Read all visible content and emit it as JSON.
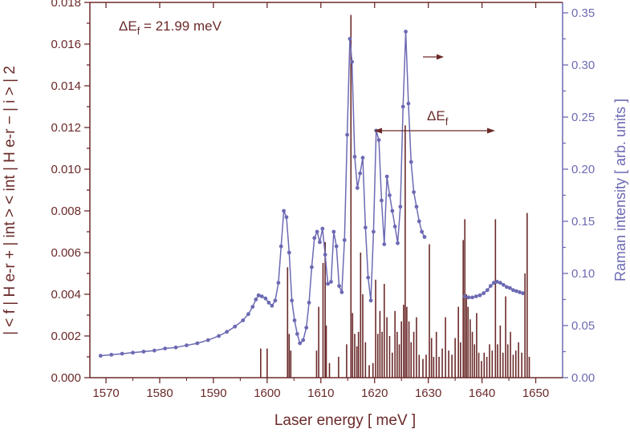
{
  "chart_data": {
    "type": "bar+line",
    "annotation_delta": "ΔE",
    "annotation_delta_sub": "f",
    "annotation_value": " = 21.99 meV",
    "arrow_label": "ΔE",
    "arrow_label_sub": "f",
    "xlabel": "Laser energy [ meV ]",
    "ylabel_left": "| < f | H e-r + | int > < int | H e-r − | i > | 2",
    "ylabel_right": "Raman intensity [ arb. units ]",
    "xlim": [
      1567,
      1655
    ],
    "ylim_left": [
      0,
      0.018
    ],
    "ylim_right": [
      0,
      0.36
    ],
    "x_ticks": [
      "1570",
      "1580",
      "1590",
      "1600",
      "1610",
      "1620",
      "1630",
      "1640",
      "1650"
    ],
    "y_ticks_left": [
      "0.000",
      "0.002",
      "0.004",
      "0.006",
      "0.008",
      "0.010",
      "0.012",
      "0.014",
      "0.016",
      "0.018"
    ],
    "y_ticks_right": [
      "0.00",
      "0.05",
      "0.10",
      "0.15",
      "0.20",
      "0.25",
      "0.30",
      "0.35"
    ],
    "colors": {
      "bars": "#6b2a2a",
      "line": "#6c6ab3",
      "text_left": "#6b2a2a",
      "text_right": "#6c6ab3"
    },
    "bars": [
      [
        1598.8,
        0.0014
      ],
      [
        1600.0,
        0.0014
      ],
      [
        1603.8,
        0.0053
      ],
      [
        1604.1,
        0.0021
      ],
      [
        1604.4,
        0.0013
      ],
      [
        1609.2,
        0.0013
      ],
      [
        1609.6,
        0.0034
      ],
      [
        1610.4,
        0.0055
      ],
      [
        1610.8,
        0.0065
      ],
      [
        1611.0,
        0.0025
      ],
      [
        1611.6,
        0.0007
      ],
      [
        1613.3,
        0.001
      ],
      [
        1614.8,
        0.0016
      ],
      [
        1615.6,
        0.0174
      ],
      [
        1615.9,
        0.0031
      ],
      [
        1616.3,
        0.0021
      ],
      [
        1616.7,
        0.0015
      ],
      [
        1617.0,
        0.0022
      ],
      [
        1617.4,
        0.006
      ],
      [
        1617.8,
        0.004
      ],
      [
        1618.3,
        0.0017
      ],
      [
        1619.0,
        0.0006
      ],
      [
        1619.7,
        0.0007
      ],
      [
        1620.2,
        0.0047
      ],
      [
        1620.6,
        0.0021
      ],
      [
        1621.0,
        0.0032
      ],
      [
        1621.4,
        0.0022
      ],
      [
        1621.8,
        0.0045
      ],
      [
        1622.3,
        0.0029
      ],
      [
        1622.8,
        0.002
      ],
      [
        1623.3,
        0.0012
      ],
      [
        1623.8,
        0.0032
      ],
      [
        1624.2,
        0.0022
      ],
      [
        1624.6,
        0.0016
      ],
      [
        1625.0,
        0.0027
      ],
      [
        1625.4,
        0.0035
      ],
      [
        1625.7,
        0.0121
      ],
      [
        1626.0,
        0.0034
      ],
      [
        1626.4,
        0.0027
      ],
      [
        1626.8,
        0.0017
      ],
      [
        1627.3,
        0.0022
      ],
      [
        1627.8,
        0.0029
      ],
      [
        1628.3,
        0.0011
      ],
      [
        1629.0,
        0.0009
      ],
      [
        1629.6,
        0.0011
      ],
      [
        1630.2,
        0.0064
      ],
      [
        1630.6,
        0.0019
      ],
      [
        1631.0,
        0.001
      ],
      [
        1631.5,
        0.0022
      ],
      [
        1632.0,
        0.001
      ],
      [
        1632.6,
        0.0014
      ],
      [
        1633.2,
        0.0029
      ],
      [
        1633.8,
        0.0013
      ],
      [
        1634.4,
        0.0011
      ],
      [
        1635.0,
        0.0019
      ],
      [
        1635.6,
        0.0034
      ],
      [
        1636.0,
        0.0017
      ],
      [
        1636.5,
        0.0066
      ],
      [
        1636.8,
        0.0076
      ],
      [
        1637.1,
        0.004
      ],
      [
        1637.4,
        0.0034
      ],
      [
        1637.8,
        0.0028
      ],
      [
        1638.2,
        0.0022
      ],
      [
        1638.6,
        0.0016
      ],
      [
        1639.0,
        0.0031
      ],
      [
        1639.4,
        0.0012
      ],
      [
        1639.9,
        0.0008
      ],
      [
        1640.4,
        0.0012
      ],
      [
        1640.9,
        0.001
      ],
      [
        1641.4,
        0.0016
      ],
      [
        1641.9,
        0.0013
      ],
      [
        1642.5,
        0.0076
      ],
      [
        1642.9,
        0.0016
      ],
      [
        1643.4,
        0.0025
      ],
      [
        1643.9,
        0.0012
      ],
      [
        1644.4,
        0.0039
      ],
      [
        1644.8,
        0.0016
      ],
      [
        1645.3,
        0.0022
      ],
      [
        1645.8,
        0.0011
      ],
      [
        1646.3,
        0.0013
      ],
      [
        1646.8,
        0.0017
      ],
      [
        1647.4,
        0.0012
      ],
      [
        1648.0,
        0.005
      ],
      [
        1648.4,
        0.0079
      ],
      [
        1648.8,
        0.001
      ]
    ],
    "raman_curve": [
      [
        1569.0,
        0.021
      ],
      [
        1571.0,
        0.022
      ],
      [
        1573.0,
        0.023
      ],
      [
        1575.0,
        0.024
      ],
      [
        1577.0,
        0.025
      ],
      [
        1579.0,
        0.026
      ],
      [
        1581.0,
        0.028
      ],
      [
        1583.0,
        0.029
      ],
      [
        1585.0,
        0.031
      ],
      [
        1587.0,
        0.033
      ],
      [
        1589.0,
        0.036
      ],
      [
        1591.0,
        0.04
      ],
      [
        1592.5,
        0.044
      ],
      [
        1594.0,
        0.049
      ],
      [
        1595.5,
        0.055
      ],
      [
        1596.5,
        0.061
      ],
      [
        1597.3,
        0.068
      ],
      [
        1597.9,
        0.075
      ],
      [
        1598.4,
        0.079
      ],
      [
        1599.0,
        0.078
      ],
      [
        1599.7,
        0.076
      ],
      [
        1600.3,
        0.072
      ],
      [
        1600.9,
        0.069
      ],
      [
        1601.5,
        0.074
      ],
      [
        1602.1,
        0.091
      ],
      [
        1602.6,
        0.126
      ],
      [
        1603.1,
        0.16
      ],
      [
        1603.6,
        0.154
      ],
      [
        1604.1,
        0.12
      ],
      [
        1604.6,
        0.074
      ],
      [
        1605.1,
        0.055
      ],
      [
        1605.6,
        0.042
      ],
      [
        1606.1,
        0.033
      ],
      [
        1606.7,
        0.036
      ],
      [
        1607.3,
        0.048
      ],
      [
        1607.8,
        0.072
      ],
      [
        1608.3,
        0.106
      ],
      [
        1608.8,
        0.134
      ],
      [
        1609.3,
        0.14
      ],
      [
        1609.8,
        0.13
      ],
      [
        1610.3,
        0.143
      ],
      [
        1610.8,
        0.118
      ],
      [
        1611.3,
        0.09
      ],
      [
        1611.9,
        0.092
      ],
      [
        1612.4,
        0.14
      ],
      [
        1612.9,
        0.126
      ],
      [
        1613.4,
        0.088
      ],
      [
        1613.9,
        0.082
      ],
      [
        1614.4,
        0.132
      ],
      [
        1614.9,
        0.233
      ],
      [
        1615.4,
        0.325
      ],
      [
        1615.8,
        0.303
      ],
      [
        1616.3,
        0.212
      ],
      [
        1616.8,
        0.182
      ],
      [
        1617.3,
        0.196
      ],
      [
        1617.8,
        0.211
      ],
      [
        1618.3,
        0.144
      ],
      [
        1618.8,
        0.096
      ],
      [
        1619.3,
        0.074
      ],
      [
        1619.8,
        0.14
      ],
      [
        1620.3,
        0.237
      ],
      [
        1620.8,
        0.228
      ],
      [
        1621.3,
        0.17
      ],
      [
        1621.8,
        0.128
      ],
      [
        1622.3,
        0.193
      ],
      [
        1622.8,
        0.175
      ],
      [
        1623.3,
        0.16
      ],
      [
        1623.8,
        0.145
      ],
      [
        1624.3,
        0.129
      ],
      [
        1624.8,
        0.164
      ],
      [
        1625.3,
        0.26
      ],
      [
        1625.8,
        0.332
      ],
      [
        1626.3,
        0.263
      ],
      [
        1626.8,
        0.207
      ],
      [
        1627.3,
        0.178
      ],
      [
        1627.8,
        0.164
      ],
      [
        1628.3,
        0.15
      ],
      [
        1628.8,
        0.14
      ],
      [
        1629.3,
        0.135
      ],
      [
        1636.8,
        0.078
      ],
      [
        1637.5,
        0.077
      ],
      [
        1638.2,
        0.077
      ],
      [
        1638.9,
        0.078
      ],
      [
        1639.6,
        0.079
      ],
      [
        1640.3,
        0.081
      ],
      [
        1641.0,
        0.084
      ],
      [
        1641.6,
        0.088
      ],
      [
        1642.2,
        0.091
      ],
      [
        1642.8,
        0.092
      ],
      [
        1643.4,
        0.091
      ],
      [
        1644.0,
        0.089
      ],
      [
        1644.6,
        0.087
      ],
      [
        1645.2,
        0.086
      ],
      [
        1645.8,
        0.084
      ],
      [
        1646.4,
        0.083
      ],
      [
        1647.0,
        0.082
      ],
      [
        1647.6,
        0.081
      ]
    ]
  }
}
